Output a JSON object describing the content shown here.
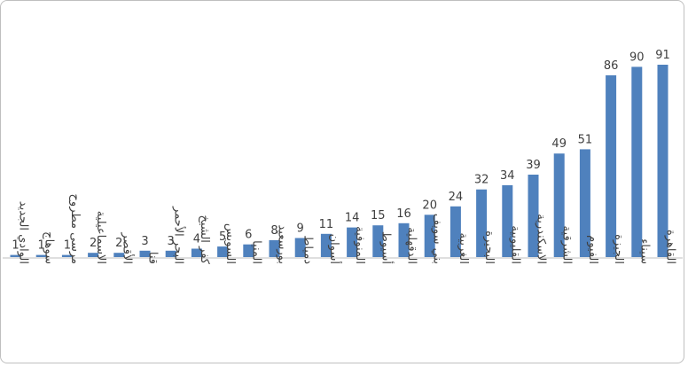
{
  "chart_data": {
    "type": "bar",
    "categories": [
      "الوادي الجديد",
      "سوهاج",
      "مرسى مطروح",
      "الاسماعيلية",
      "الأقصر",
      "قنا",
      "البحر الأحمر",
      "كفر الشيخ",
      "السويس",
      "المنيا",
      "بورسعيد",
      "دمياط",
      "أسوان",
      "المنوفية",
      "أسيوط",
      "الدقهلية",
      "بني سويف",
      "الغربية",
      "البحيرة",
      "القليوبية",
      "الاسكندرية",
      "الشرقية",
      "الفيوم",
      "الجيزة",
      "سيناء",
      "القاهرة"
    ],
    "values": [
      1,
      1,
      1,
      2,
      2,
      3,
      3,
      4,
      5,
      6,
      8,
      9,
      11,
      14,
      15,
      16,
      20,
      24,
      32,
      34,
      39,
      49,
      51,
      86,
      90,
      91
    ],
    "title": "",
    "xlabel": "",
    "ylabel": "",
    "ylim": [
      0,
      91
    ],
    "grid": false,
    "legend": "none",
    "bar_color": "#4f81bd",
    "axis_color": "#bfbfbf",
    "label_color": "#404040"
  }
}
